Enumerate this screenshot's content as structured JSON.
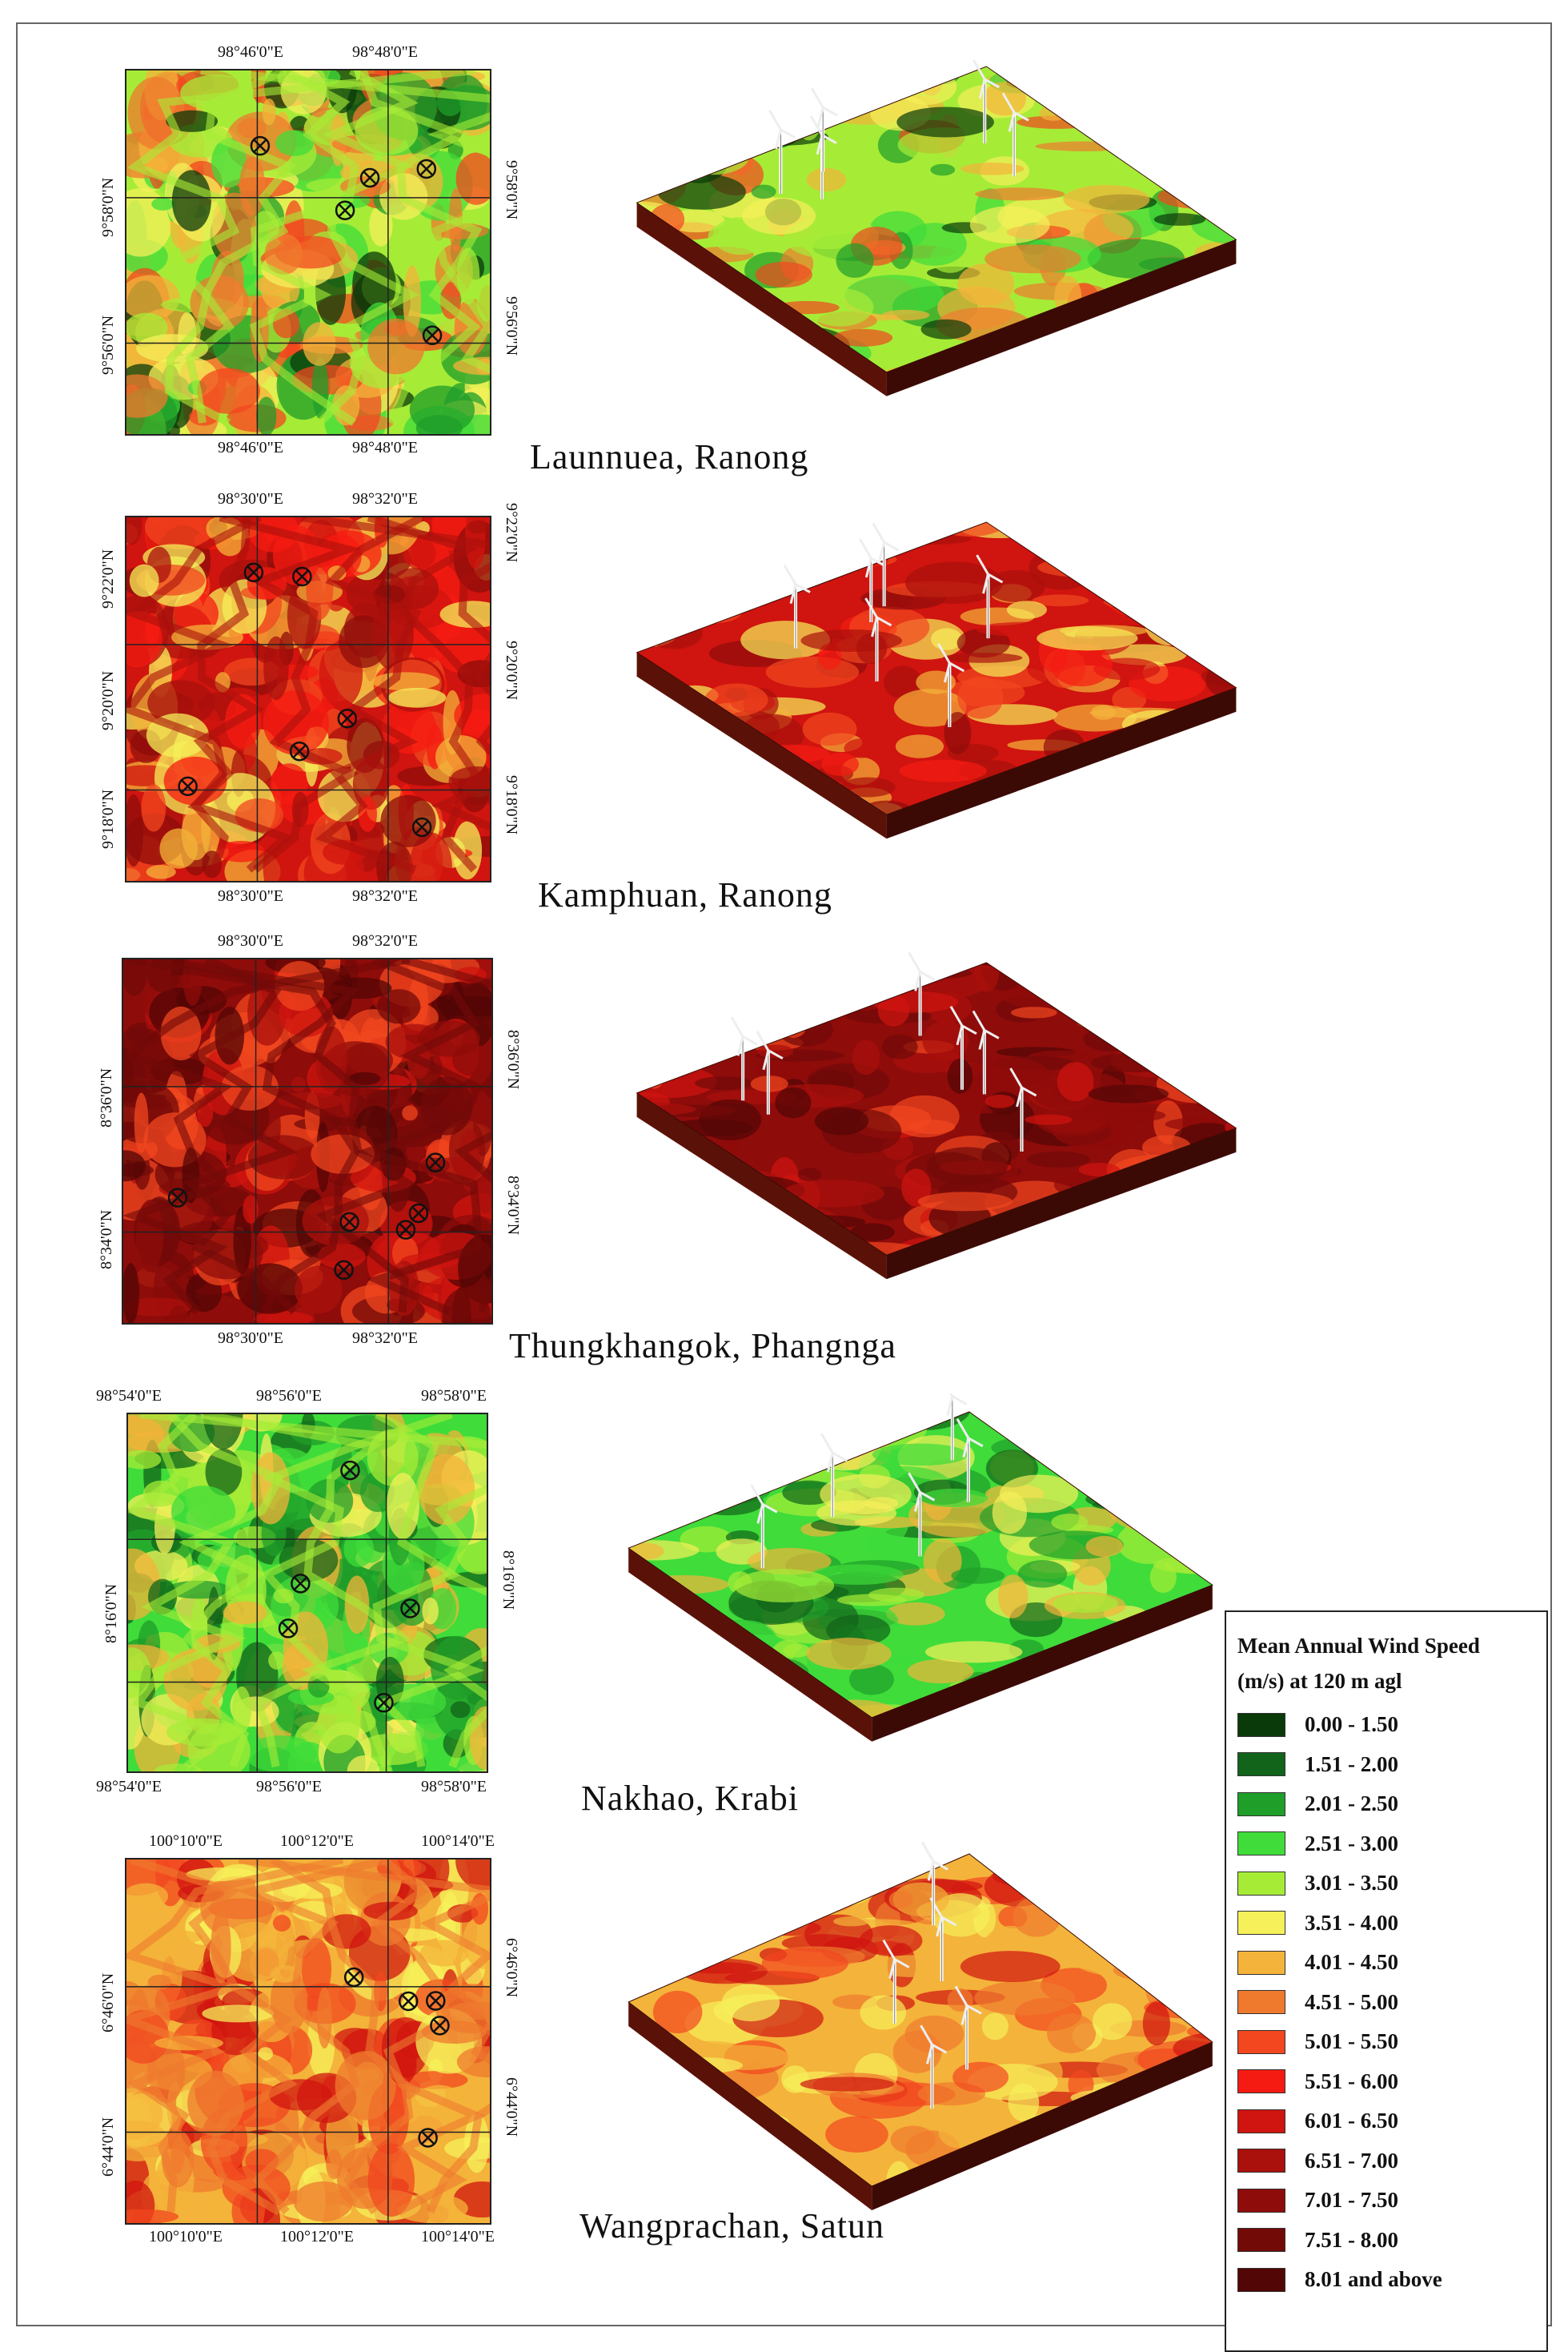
{
  "legend": {
    "title_line1": "Mean Annual Wind Speed",
    "title_line2": "(m/s) at 120 m agl",
    "classes": [
      {
        "label": "0.00 - 1.50",
        "color": "#0a3a0a"
      },
      {
        "label": "1.51 - 2.00",
        "color": "#11641a"
      },
      {
        "label": "2.01 - 2.50",
        "color": "#1f9e2a"
      },
      {
        "label": "2.51 - 3.00",
        "color": "#3fdc3a"
      },
      {
        "label": "3.01 - 3.50",
        "color": "#a6ec37"
      },
      {
        "label": "3.51 - 4.00",
        "color": "#f6f05a"
      },
      {
        "label": "4.01 - 4.50",
        "color": "#f4b33a"
      },
      {
        "label": "4.51 - 5.00",
        "color": "#ef7a2e"
      },
      {
        "label": "5.01 - 5.50",
        "color": "#f2471f"
      },
      {
        "label": "5.51 - 6.00",
        "color": "#f51b12"
      },
      {
        "label": "6.01 - 6.50",
        "color": "#d0140f"
      },
      {
        "label": "6.51 - 7.00",
        "color": "#aa100c"
      },
      {
        "label": "7.01 - 7.50",
        "color": "#8e0c0a"
      },
      {
        "label": "7.51 - 8.00",
        "color": "#720a08"
      },
      {
        "label": "8.01 and above",
        "color": "#520605"
      }
    ]
  },
  "sites": [
    {
      "name": "Launnuea,  Ranong",
      "top_ticks": [
        "98°46'0\"E",
        "98°48'0\"E"
      ],
      "bottom_ticks": [
        "98°46'0\"E",
        "98°48'0\"E"
      ],
      "left_ticks": [
        "9°58'0\"N",
        "9°56'0\"N"
      ],
      "right_ticks": [
        "9°58'0\"N",
        "9°56'0\"N"
      ],
      "palette": [
        "#f4b33a",
        "#a6ec37",
        "#3fdc3a",
        "#1f9e2a",
        "#0a3a0a",
        "#ef7a2e",
        "#f2471f",
        "#f6f05a"
      ],
      "base": "#a6ec37",
      "turbines": 5
    },
    {
      "name": "Kamphuan,  Ranong",
      "top_ticks": [
        "98°30'0\"E",
        "98°32'0\"E"
      ],
      "bottom_ticks": [
        "98°30'0\"E",
        "98°32'0\"E"
      ],
      "left_ticks": [
        "9°22'0\"N",
        "9°20'0\"N",
        "9°18'0\"N"
      ],
      "right_ticks": [
        "9°22'0\"N",
        "9°20'0\"N",
        "9°18'0\"N"
      ],
      "palette": [
        "#d0140f",
        "#aa100c",
        "#f51b12",
        "#f2471f",
        "#f4b33a",
        "#f6f05a",
        "#8e0c0a"
      ],
      "base": "#d0140f",
      "turbines": 6
    },
    {
      "name": "Thungkhangok,  Phangnga",
      "top_ticks": [
        "98°30'0\"E",
        "98°32'0\"E"
      ],
      "bottom_ticks": [
        "98°30'0\"E",
        "98°32'0\"E"
      ],
      "left_ticks": [
        "8°36'0\"N",
        "8°34'0\"N"
      ],
      "right_ticks": [
        "8°36'0\"N",
        "8°34'0\"N"
      ],
      "palette": [
        "#8e0c0a",
        "#720a08",
        "#aa100c",
        "#d0140f",
        "#f2471f",
        "#520605"
      ],
      "base": "#8e0c0a",
      "turbines": 6
    },
    {
      "name": "Nakhao,  Krabi",
      "top_ticks": [
        "98°54'0\"E",
        "98°56'0\"E",
        "98°58'0\"E"
      ],
      "bottom_ticks": [
        "98°54'0\"E",
        "98°56'0\"E",
        "98°58'0\"E"
      ],
      "left_ticks": [
        "8°16'0\"N"
      ],
      "right_ticks": [
        "8°16'0\"N"
      ],
      "palette": [
        "#3fdc3a",
        "#a6ec37",
        "#1f9e2a",
        "#f6f05a",
        "#f4b33a",
        "#11641a"
      ],
      "base": "#3fdc3a",
      "turbines": 5
    },
    {
      "name": "Wangprachan,  Satun",
      "top_ticks": [
        "100°10'0\"E",
        "100°12'0\"E",
        "100°14'0\"E"
      ],
      "bottom_ticks": [
        "100°10'0\"E",
        "100°12'0\"E",
        "100°14'0\"E"
      ],
      "left_ticks": [
        "6°46'0\"N",
        "6°44'0\"N"
      ],
      "right_ticks": [
        "6°46'0\"N",
        "6°44'0\"N"
      ],
      "palette": [
        "#f4b33a",
        "#ef7a2e",
        "#f2471f",
        "#f6f05a",
        "#d0140f"
      ],
      "base": "#f4b33a",
      "turbines": 5
    }
  ]
}
